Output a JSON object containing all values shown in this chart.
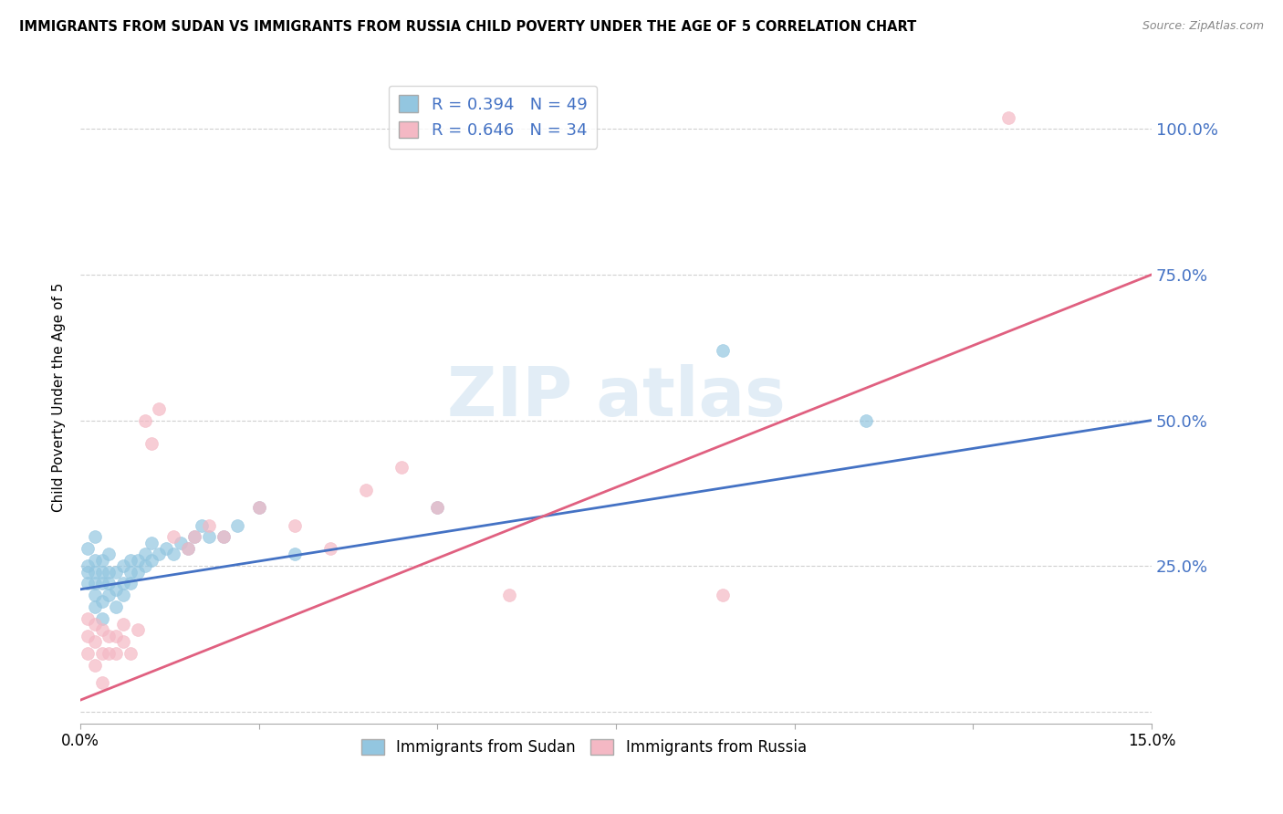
{
  "title": "IMMIGRANTS FROM SUDAN VS IMMIGRANTS FROM RUSSIA CHILD POVERTY UNDER THE AGE OF 5 CORRELATION CHART",
  "source": "Source: ZipAtlas.com",
  "ylabel": "Child Poverty Under the Age of 5",
  "xlim": [
    0.0,
    0.15
  ],
  "ylim": [
    -0.02,
    1.1
  ],
  "xticks": [
    0.0,
    0.025,
    0.05,
    0.075,
    0.1,
    0.125,
    0.15
  ],
  "ytick_positions": [
    0.0,
    0.25,
    0.5,
    0.75,
    1.0
  ],
  "ytick_labels": [
    "",
    "25.0%",
    "50.0%",
    "75.0%",
    "100.0%"
  ],
  "sudan_color": "#93c6e0",
  "russia_color": "#f4b8c4",
  "sudan_line_color": "#4472c4",
  "russia_line_color": "#e06080",
  "sudan_R": 0.394,
  "sudan_N": 49,
  "russia_R": 0.646,
  "russia_N": 34,
  "legend_label_sudan": "Immigrants from Sudan",
  "legend_label_russia": "Immigrants from Russia",
  "sudan_scatter_x": [
    0.001,
    0.001,
    0.001,
    0.001,
    0.002,
    0.002,
    0.002,
    0.002,
    0.002,
    0.002,
    0.003,
    0.003,
    0.003,
    0.003,
    0.003,
    0.004,
    0.004,
    0.004,
    0.004,
    0.005,
    0.005,
    0.005,
    0.006,
    0.006,
    0.006,
    0.007,
    0.007,
    0.007,
    0.008,
    0.008,
    0.009,
    0.009,
    0.01,
    0.01,
    0.011,
    0.012,
    0.013,
    0.014,
    0.015,
    0.016,
    0.017,
    0.018,
    0.02,
    0.022,
    0.025,
    0.03,
    0.05,
    0.09,
    0.11
  ],
  "sudan_scatter_y": [
    0.22,
    0.24,
    0.25,
    0.28,
    0.18,
    0.2,
    0.22,
    0.24,
    0.26,
    0.3,
    0.16,
    0.19,
    0.22,
    0.24,
    0.26,
    0.2,
    0.22,
    0.24,
    0.27,
    0.18,
    0.21,
    0.24,
    0.2,
    0.22,
    0.25,
    0.22,
    0.24,
    0.26,
    0.24,
    0.26,
    0.25,
    0.27,
    0.26,
    0.29,
    0.27,
    0.28,
    0.27,
    0.29,
    0.28,
    0.3,
    0.32,
    0.3,
    0.3,
    0.32,
    0.35,
    0.27,
    0.35,
    0.62,
    0.5
  ],
  "russia_scatter_x": [
    0.001,
    0.001,
    0.001,
    0.002,
    0.002,
    0.002,
    0.003,
    0.003,
    0.003,
    0.004,
    0.004,
    0.005,
    0.005,
    0.006,
    0.006,
    0.007,
    0.008,
    0.009,
    0.01,
    0.011,
    0.013,
    0.015,
    0.016,
    0.018,
    0.02,
    0.025,
    0.03,
    0.035,
    0.04,
    0.045,
    0.05,
    0.06,
    0.09,
    0.13
  ],
  "russia_scatter_y": [
    0.1,
    0.13,
    0.16,
    0.08,
    0.12,
    0.15,
    0.05,
    0.1,
    0.14,
    0.1,
    0.13,
    0.1,
    0.13,
    0.12,
    0.15,
    0.1,
    0.14,
    0.5,
    0.46,
    0.52,
    0.3,
    0.28,
    0.3,
    0.32,
    0.3,
    0.35,
    0.32,
    0.28,
    0.38,
    0.42,
    0.35,
    0.2,
    0.2,
    1.02
  ],
  "background_color": "#ffffff",
  "grid_color": "#d0d0d0"
}
